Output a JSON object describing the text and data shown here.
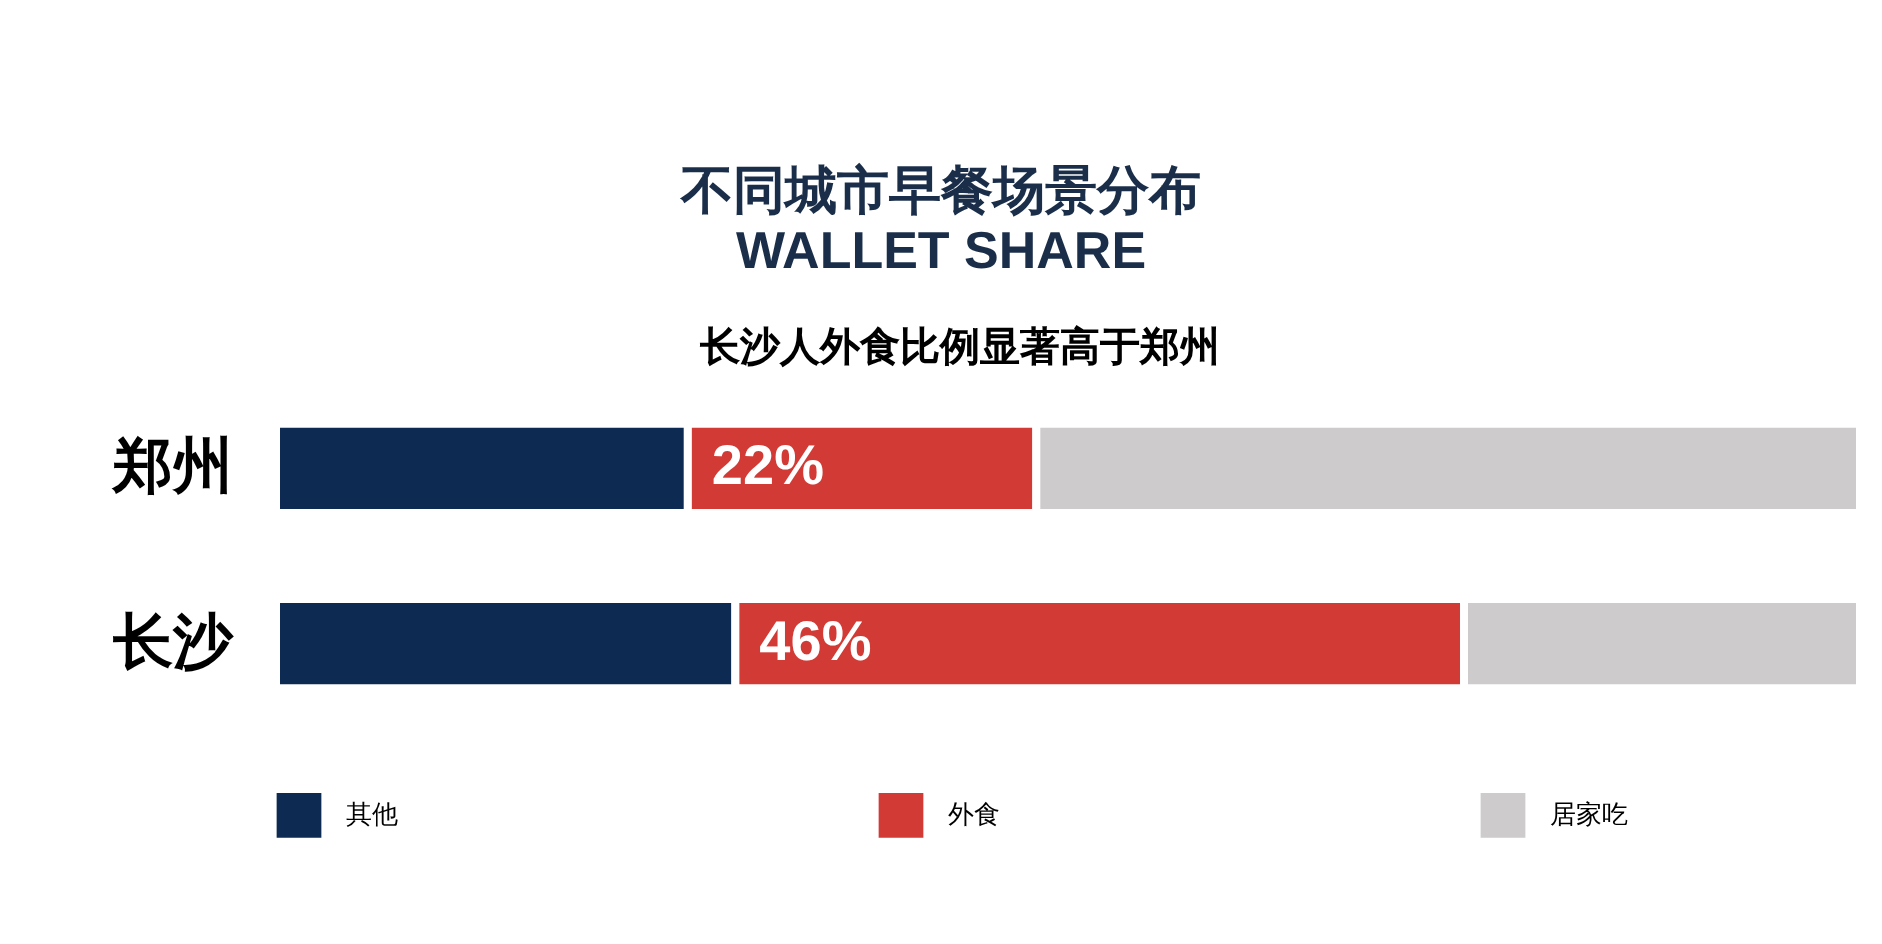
{
  "chart_data": {
    "type": "bar",
    "orientation": "horizontal",
    "stacked": true,
    "title": "不同城市早餐场景分布",
    "subtitle": "WALLET SHARE",
    "annotations": [
      "长沙人外食比例显著高于郑州"
    ],
    "categories": [
      "郑州",
      "长沙"
    ],
    "xlim": [
      0,
      100
    ],
    "legend": "bottom",
    "series": [
      {
        "name": "其他",
        "color": "#0d2b52",
        "values": [
          26,
          29
        ]
      },
      {
        "name": "外食",
        "color": "#d23a35",
        "values": [
          22,
          46
        ],
        "value_labels": [
          "22%",
          "46%"
        ]
      },
      {
        "name": "居家吃",
        "color": "#cdcbcc",
        "values": [
          52,
          25
        ]
      }
    ]
  }
}
